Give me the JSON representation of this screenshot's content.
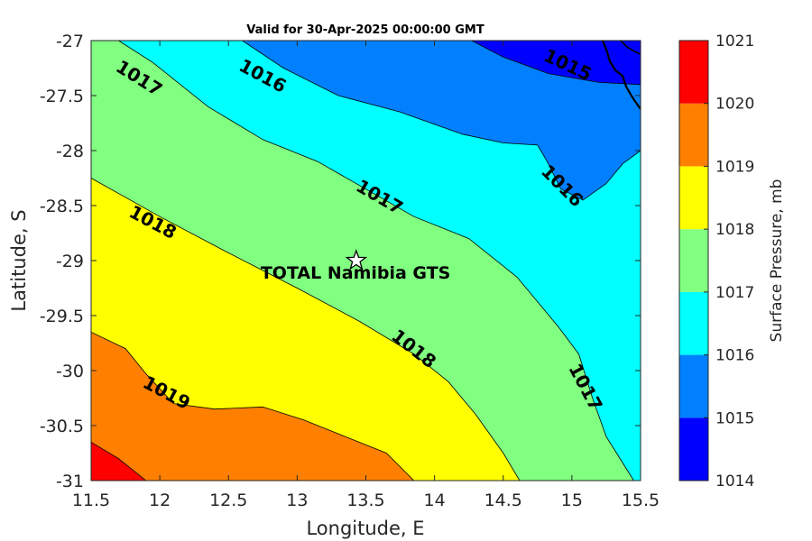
{
  "chart_data": {
    "type": "contour",
    "title": "Valid for 30-Apr-2025 00:00:00 GMT",
    "xlabel": "Longitude, E",
    "ylabel": "Latitude, S",
    "xlim": [
      11.5,
      15.5
    ],
    "ylim": [
      -31,
      -27
    ],
    "xticks": [
      "11.5",
      "12",
      "12.5",
      "13",
      "13.5",
      "14",
      "14.5",
      "15",
      "15.5"
    ],
    "yticks": [
      "-27",
      "-27.5",
      "-28",
      "-28.5",
      "-29",
      "-29.5",
      "-30",
      "-30.5",
      "-31"
    ],
    "grid": false,
    "colorbar": {
      "label": "Surface Pressure, mb",
      "levels": [
        "1014",
        "1015",
        "1016",
        "1017",
        "1018",
        "1019",
        "1020",
        "1021"
      ],
      "colors": [
        "#0000ff",
        "#0080ff",
        "#00ffff",
        "#80ff80",
        "#ffff00",
        "#ff8000",
        "#ff0000",
        "#800000"
      ]
    },
    "contour_levels": [
      1015,
      1016,
      1017,
      1018,
      1019,
      1020
    ],
    "contour_lines": [
      {
        "level": 1015,
        "points": [
          [
            14.27,
            -27
          ],
          [
            14.5,
            -27.15
          ],
          [
            14.83,
            -27.3
          ],
          [
            15.2,
            -27.38
          ],
          [
            15.5,
            -27.4
          ]
        ]
      },
      {
        "level": 1016,
        "points": [
          [
            12.6,
            -27
          ],
          [
            12.9,
            -27.25
          ],
          [
            13.3,
            -27.5
          ],
          [
            13.75,
            -27.65
          ],
          [
            14.2,
            -27.85
          ],
          [
            14.5,
            -27.93
          ],
          [
            14.75,
            -27.95
          ],
          [
            14.82,
            -28.1
          ],
          [
            14.92,
            -28.35
          ],
          [
            15.08,
            -28.45
          ],
          [
            15.25,
            -28.3
          ],
          [
            15.37,
            -28.12
          ],
          [
            15.5,
            -28.0
          ]
        ]
      },
      {
        "level": 1017,
        "points": [
          [
            11.7,
            -27
          ],
          [
            11.95,
            -27.2
          ],
          [
            12.35,
            -27.6
          ],
          [
            12.75,
            -27.9
          ],
          [
            13.15,
            -28.1
          ],
          [
            13.5,
            -28.35
          ],
          [
            13.85,
            -28.6
          ],
          [
            14.25,
            -28.8
          ],
          [
            14.6,
            -29.15
          ],
          [
            14.9,
            -29.6
          ],
          [
            15.05,
            -29.85
          ],
          [
            15.15,
            -30.25
          ],
          [
            15.25,
            -30.6
          ],
          [
            15.35,
            -30.8
          ],
          [
            15.45,
            -31
          ]
        ]
      },
      {
        "level": 1018,
        "points": [
          [
            11.5,
            -28.25
          ],
          [
            12.0,
            -28.6
          ],
          [
            12.5,
            -28.93
          ],
          [
            13.0,
            -29.25
          ],
          [
            13.45,
            -29.55
          ],
          [
            13.85,
            -29.85
          ],
          [
            14.1,
            -30.1
          ],
          [
            14.3,
            -30.4
          ],
          [
            14.5,
            -30.75
          ],
          [
            14.62,
            -31
          ]
        ]
      },
      {
        "level": 1019,
        "points": [
          [
            11.5,
            -29.65
          ],
          [
            11.75,
            -29.8
          ],
          [
            11.9,
            -30.03
          ],
          [
            12.1,
            -30.3
          ],
          [
            12.4,
            -30.35
          ],
          [
            12.75,
            -30.33
          ],
          [
            13.05,
            -30.45
          ],
          [
            13.35,
            -30.6
          ],
          [
            13.65,
            -30.75
          ],
          [
            13.85,
            -31
          ]
        ]
      },
      {
        "level": 1020,
        "points": [
          [
            11.5,
            -30.65
          ],
          [
            11.7,
            -30.8
          ],
          [
            11.9,
            -31
          ]
        ]
      }
    ],
    "contour_labels": [
      {
        "text": "1015",
        "lon": 14.97,
        "lat": -27.22,
        "angle": 25
      },
      {
        "text": "1016",
        "lon": 12.75,
        "lat": -27.32,
        "angle": 28
      },
      {
        "text": "1016",
        "lon": 14.93,
        "lat": -28.32,
        "angle": 45
      },
      {
        "text": "1017",
        "lon": 11.85,
        "lat": -27.34,
        "angle": 32
      },
      {
        "text": "1017",
        "lon": 13.6,
        "lat": -28.42,
        "angle": 30
      },
      {
        "text": "1017",
        "lon": 15.1,
        "lat": -30.15,
        "angle": 62
      },
      {
        "text": "1018",
        "lon": 11.95,
        "lat": -28.65,
        "angle": 28
      },
      {
        "text": "1018",
        "lon": 13.85,
        "lat": -29.8,
        "angle": 38
      },
      {
        "text": "1019",
        "lon": 12.05,
        "lat": -30.2,
        "angle": 28
      }
    ],
    "site": {
      "name": "TOTAL Namibia GTS",
      "lon": 13.43,
      "lat": -29.0
    }
  }
}
